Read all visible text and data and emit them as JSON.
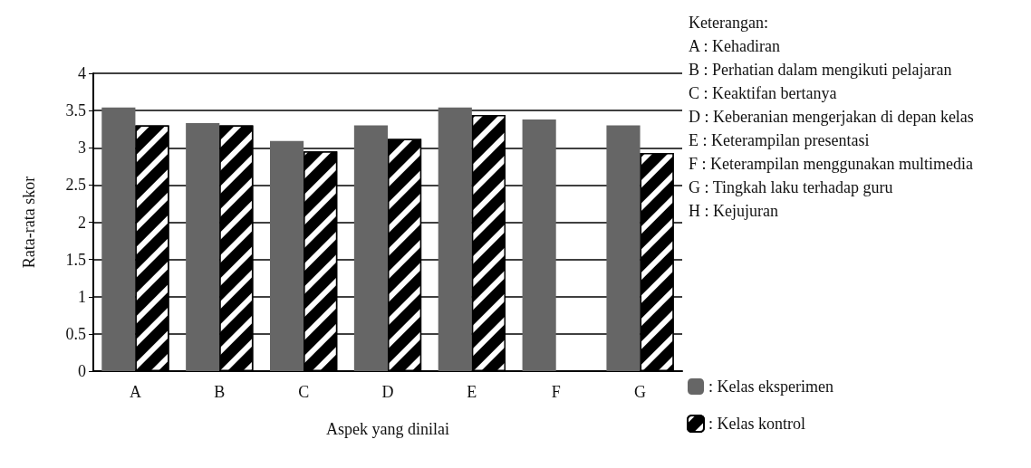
{
  "chart_data": {
    "type": "bar",
    "xlabel": "Aspek yang dinilai",
    "ylabel": "Rata-rata skor",
    "categories": [
      "A",
      "B",
      "C",
      "D",
      "E",
      "F",
      "G"
    ],
    "series": [
      {
        "name": ": Kelas eksperimen",
        "color": "#666666",
        "values": [
          3.54,
          3.33,
          3.09,
          3.3,
          3.54,
          3.38,
          3.3
        ]
      },
      {
        "name": ": Kelas kontrol",
        "color": "#000000",
        "values": [
          3.3,
          3.3,
          2.95,
          3.12,
          3.44,
          null,
          2.93
        ]
      }
    ],
    "ylim": [
      0,
      4
    ],
    "yticks": [
      0,
      0.5,
      1,
      1.5,
      2,
      2.5,
      3,
      3.5,
      4
    ],
    "grid": "y",
    "legend": "right",
    "annotations": [
      "Keterangan:",
      "A : Kehadiran",
      "B : Perhatian dalam mengikuti pelajaran",
      "C : Keaktifan bertanya",
      "D : Keberanian mengerjakan di depan kelas",
      "E : Keterampilan presentasi",
      "F : Keterampilan menggunakan multimedia",
      "G : Tingkah laku terhadap guru",
      "H : Kejujuran"
    ]
  }
}
